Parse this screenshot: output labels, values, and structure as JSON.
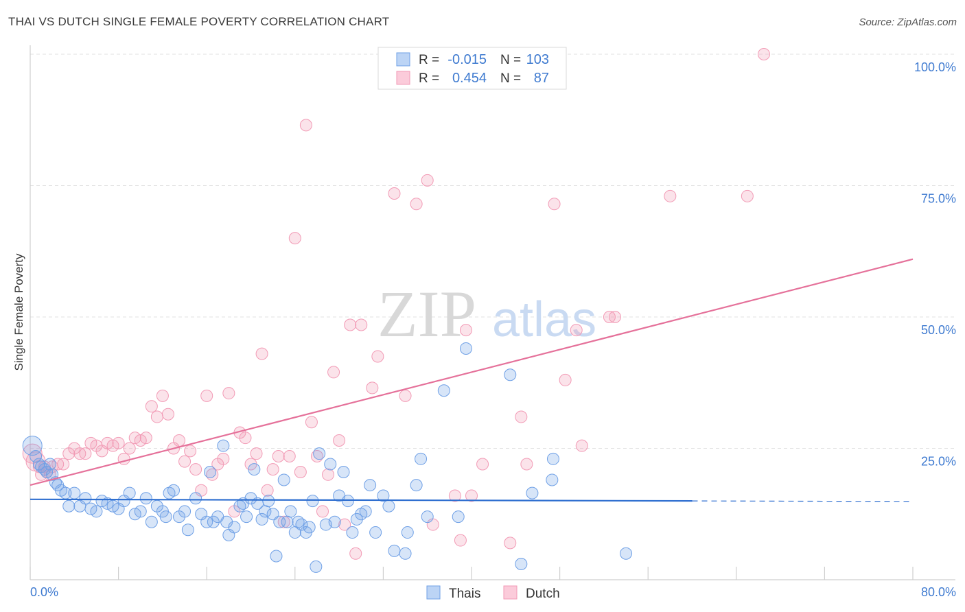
{
  "title": "THAI VS DUTCH SINGLE FEMALE POVERTY CORRELATION CHART",
  "source": "Source: ZipAtlas.com",
  "chart_data": {
    "type": "scatter",
    "title": "THAI VS DUTCH SINGLE FEMALE POVERTY CORRELATION CHART",
    "xlabel": "",
    "ylabel": "Single Female Poverty",
    "xlim": [
      0,
      80
    ],
    "ylim": [
      0,
      100
    ],
    "x_tick_labels": [
      "0.0%",
      "80.0%"
    ],
    "y_tick_labels": [
      "25.0%",
      "50.0%",
      "75.0%",
      "100.0%"
    ],
    "y_ticks": [
      25,
      50,
      75,
      100
    ],
    "grid": "horizontal dashed",
    "legend_position": "top-center",
    "watermark": "ZIPatlas",
    "stats": [
      {
        "r_label": "R =",
        "r": "-0.015",
        "n_label": "N =",
        "n": "103"
      },
      {
        "r_label": "R =",
        "r": "0.454",
        "n_label": "N =",
        "n": "87"
      }
    ],
    "colors": {
      "Thais": "#6fa0e6",
      "Dutch": "#f29ab5",
      "thais_line": "#2f6fd0",
      "dutch_line": "#e5719a",
      "tick_text": "#3e7ad0"
    },
    "series": [
      {
        "name": "Thais",
        "trend": {
          "x0": 0,
          "y0": 15.3,
          "x1": 60,
          "y1": 15.0,
          "dashed_to": 80,
          "dashed_y": 14.9
        },
        "points": [
          [
            0.2,
            25.5
          ],
          [
            0.5,
            23.5
          ],
          [
            0.8,
            22
          ],
          [
            1.0,
            21.5
          ],
          [
            1.3,
            21
          ],
          [
            1.5,
            20.5
          ],
          [
            1.8,
            22
          ],
          [
            2.0,
            20
          ],
          [
            2.3,
            18.5
          ],
          [
            2.5,
            18
          ],
          [
            2.8,
            17
          ],
          [
            3.2,
            16.5
          ],
          [
            3.5,
            14
          ],
          [
            4.0,
            16.5
          ],
          [
            4.5,
            14
          ],
          [
            5.0,
            15.5
          ],
          [
            5.5,
            13.5
          ],
          [
            6.0,
            13
          ],
          [
            6.5,
            15
          ],
          [
            7.0,
            14.5
          ],
          [
            7.5,
            14
          ],
          [
            8.0,
            13.5
          ],
          [
            8.5,
            15
          ],
          [
            9.0,
            16.5
          ],
          [
            9.5,
            12.5
          ],
          [
            10.0,
            13
          ],
          [
            10.5,
            15.5
          ],
          [
            11.0,
            11
          ],
          [
            11.5,
            14
          ],
          [
            12.0,
            13
          ],
          [
            12.3,
            12
          ],
          [
            12.6,
            16.5
          ],
          [
            13.0,
            17
          ],
          [
            13.5,
            12
          ],
          [
            14.0,
            13
          ],
          [
            14.3,
            9.5
          ],
          [
            15.0,
            15.5
          ],
          [
            15.5,
            12.5
          ],
          [
            16.0,
            11
          ],
          [
            16.3,
            20.5
          ],
          [
            16.6,
            11
          ],
          [
            17.0,
            12
          ],
          [
            17.5,
            25.5
          ],
          [
            17.8,
            11
          ],
          [
            18.0,
            8.5
          ],
          [
            18.5,
            10
          ],
          [
            19.0,
            14
          ],
          [
            19.3,
            14.5
          ],
          [
            19.6,
            12
          ],
          [
            20.0,
            15.5
          ],
          [
            20.3,
            21
          ],
          [
            20.6,
            14.5
          ],
          [
            21.0,
            11.5
          ],
          [
            21.3,
            13
          ],
          [
            21.6,
            15
          ],
          [
            22.0,
            12.5
          ],
          [
            22.3,
            4.5
          ],
          [
            22.6,
            11
          ],
          [
            23.0,
            19
          ],
          [
            23.3,
            11
          ],
          [
            23.6,
            13
          ],
          [
            24.0,
            9
          ],
          [
            24.3,
            11
          ],
          [
            24.6,
            10.5
          ],
          [
            25.0,
            9
          ],
          [
            25.3,
            10
          ],
          [
            25.6,
            15
          ],
          [
            25.9,
            2.5
          ],
          [
            26.2,
            24
          ],
          [
            26.8,
            10.5
          ],
          [
            27.2,
            22
          ],
          [
            27.6,
            11
          ],
          [
            28.0,
            16
          ],
          [
            28.4,
            20.5
          ],
          [
            28.8,
            15
          ],
          [
            29.2,
            9
          ],
          [
            29.6,
            11.5
          ],
          [
            30.0,
            12.5
          ],
          [
            30.4,
            13
          ],
          [
            30.8,
            18
          ],
          [
            31.3,
            9
          ],
          [
            32.0,
            16
          ],
          [
            32.5,
            14
          ],
          [
            33.0,
            5.5
          ],
          [
            34.0,
            5
          ],
          [
            34.2,
            9
          ],
          [
            35.0,
            18
          ],
          [
            35.4,
            23
          ],
          [
            36.0,
            12
          ],
          [
            37.5,
            36
          ],
          [
            38.8,
            12
          ],
          [
            39.5,
            44
          ],
          [
            43.5,
            39
          ],
          [
            44.5,
            3
          ],
          [
            45.5,
            16.5
          ],
          [
            47.3,
            19
          ],
          [
            47.4,
            23
          ],
          [
            54.0,
            5
          ]
        ]
      },
      {
        "name": "Dutch",
        "trend": {
          "x0": 0,
          "y0": 18,
          "x1": 80,
          "y1": 61
        },
        "points": [
          [
            0.2,
            24
          ],
          [
            0.5,
            22.5
          ],
          [
            0.8,
            21.5
          ],
          [
            1.0,
            20
          ],
          [
            1.3,
            21.5
          ],
          [
            1.5,
            20.5
          ],
          [
            1.8,
            20
          ],
          [
            2.0,
            21.5
          ],
          [
            2.5,
            22
          ],
          [
            3.0,
            22
          ],
          [
            3.5,
            24
          ],
          [
            4.0,
            25
          ],
          [
            4.5,
            24
          ],
          [
            5.0,
            24
          ],
          [
            5.5,
            26
          ],
          [
            6.0,
            25.5
          ],
          [
            6.5,
            24.5
          ],
          [
            7.0,
            26
          ],
          [
            7.5,
            25.5
          ],
          [
            8.0,
            26
          ],
          [
            8.5,
            23
          ],
          [
            9.0,
            25
          ],
          [
            9.5,
            27
          ],
          [
            10.0,
            26.5
          ],
          [
            10.5,
            27
          ],
          [
            11.0,
            33
          ],
          [
            11.5,
            31
          ],
          [
            12.0,
            35
          ],
          [
            12.5,
            31.5
          ],
          [
            13.0,
            25
          ],
          [
            13.5,
            26.5
          ],
          [
            14.0,
            22.5
          ],
          [
            14.5,
            24.5
          ],
          [
            15.0,
            21
          ],
          [
            15.5,
            17
          ],
          [
            16.0,
            35
          ],
          [
            16.5,
            20
          ],
          [
            17.0,
            22
          ],
          [
            17.5,
            23
          ],
          [
            18.0,
            35.5
          ],
          [
            18.5,
            13
          ],
          [
            19.0,
            28
          ],
          [
            19.5,
            27
          ],
          [
            20.0,
            22
          ],
          [
            20.5,
            24
          ],
          [
            21.0,
            43
          ],
          [
            21.5,
            17
          ],
          [
            22.0,
            21
          ],
          [
            22.5,
            23.5
          ],
          [
            23.0,
            11
          ],
          [
            23.5,
            23.5
          ],
          [
            24.0,
            65
          ],
          [
            24.5,
            20.5
          ],
          [
            25.0,
            86.5
          ],
          [
            25.5,
            30
          ],
          [
            26.0,
            23.5
          ],
          [
            26.5,
            13
          ],
          [
            27.0,
            20
          ],
          [
            27.5,
            39.5
          ],
          [
            28.0,
            26.5
          ],
          [
            28.5,
            10.5
          ],
          [
            29.0,
            48.5
          ],
          [
            29.5,
            5
          ],
          [
            30.0,
            48.5
          ],
          [
            31.0,
            36.5
          ],
          [
            31.5,
            42.5
          ],
          [
            33.0,
            73.5
          ],
          [
            34.0,
            35
          ],
          [
            35.0,
            71.5
          ],
          [
            36.0,
            76
          ],
          [
            36.5,
            10.5
          ],
          [
            38.5,
            16
          ],
          [
            39.0,
            7.5
          ],
          [
            39.5,
            47.5
          ],
          [
            40.0,
            16
          ],
          [
            41.0,
            22
          ],
          [
            43.5,
            7
          ],
          [
            44.5,
            31
          ],
          [
            45.0,
            22
          ],
          [
            47.5,
            71.5
          ],
          [
            48.5,
            38
          ],
          [
            49.5,
            47.5
          ],
          [
            50.0,
            25.5
          ],
          [
            52.5,
            50
          ],
          [
            53.0,
            50
          ],
          [
            58.0,
            73
          ],
          [
            65.0,
            73
          ],
          [
            66.5,
            100
          ]
        ]
      }
    ]
  },
  "legend": {
    "items": [
      {
        "label": "Thais"
      },
      {
        "label": "Dutch"
      }
    ]
  }
}
